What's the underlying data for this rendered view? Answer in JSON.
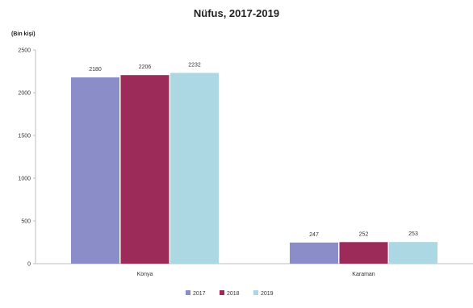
{
  "chart_data": {
    "type": "bar",
    "title": "Nüfus, 2017-2019",
    "ylabel": "(Bin kişi)",
    "xlabel": "",
    "categories": [
      "Konya",
      "Karaman"
    ],
    "series": [
      {
        "name": "2017",
        "values": [
          2180,
          247
        ],
        "color": "#8b8dc8"
      },
      {
        "name": "2018",
        "values": [
          2206,
          252
        ],
        "color": "#9c2b5a"
      },
      {
        "name": "2019",
        "values": [
          2232,
          253
        ],
        "color": "#abd8e2"
      }
    ],
    "ylim": [
      0,
      2500
    ],
    "yticks": [
      0,
      500,
      1000,
      1500,
      2000,
      2500
    ],
    "grid": false,
    "legend": "bottom"
  }
}
